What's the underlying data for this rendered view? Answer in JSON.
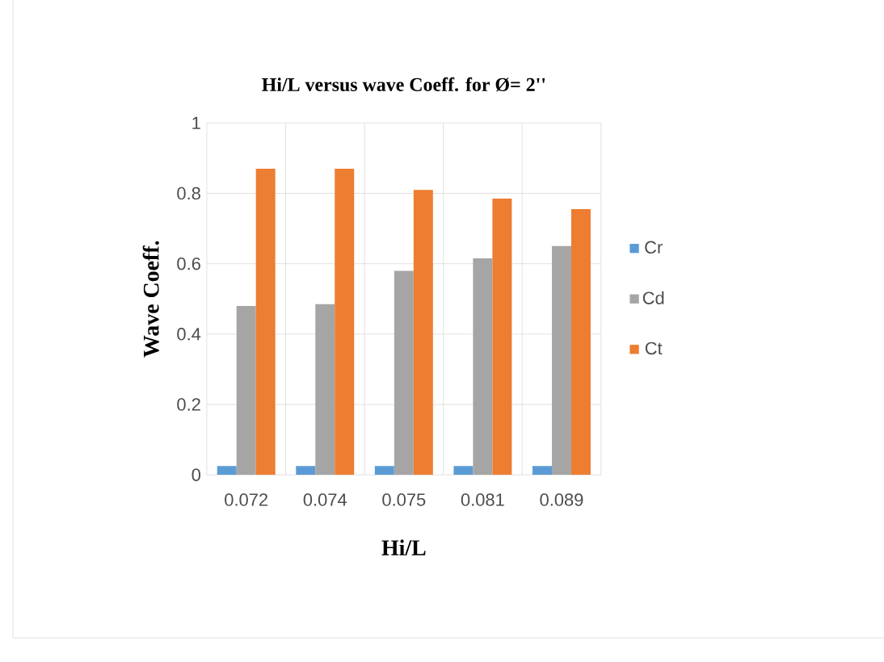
{
  "chart_data": {
    "type": "bar",
    "title": "Hi/L versus wave Coeff. for Ø= 2''",
    "xlabel": "Hi/L",
    "ylabel": "Wave Coeff.",
    "categories": [
      "0.072",
      "0.074",
      "0.075",
      "0.081",
      "0.089"
    ],
    "series": [
      {
        "name": "Cr",
        "color": "#5b9bd5",
        "values": [
          0.025,
          0.025,
          0.025,
          0.025,
          0.025
        ]
      },
      {
        "name": "Cd",
        "color": "#a5a5a5",
        "values": [
          0.48,
          0.485,
          0.58,
          0.615,
          0.65
        ]
      },
      {
        "name": "Ct",
        "color": "#ed7d31",
        "values": [
          0.87,
          0.87,
          0.81,
          0.785,
          0.755
        ]
      }
    ],
    "ylim": [
      0,
      1
    ],
    "yticks": [
      0,
      0.2,
      0.4,
      0.6,
      0.8,
      1
    ],
    "grid": true,
    "legend": "right"
  }
}
